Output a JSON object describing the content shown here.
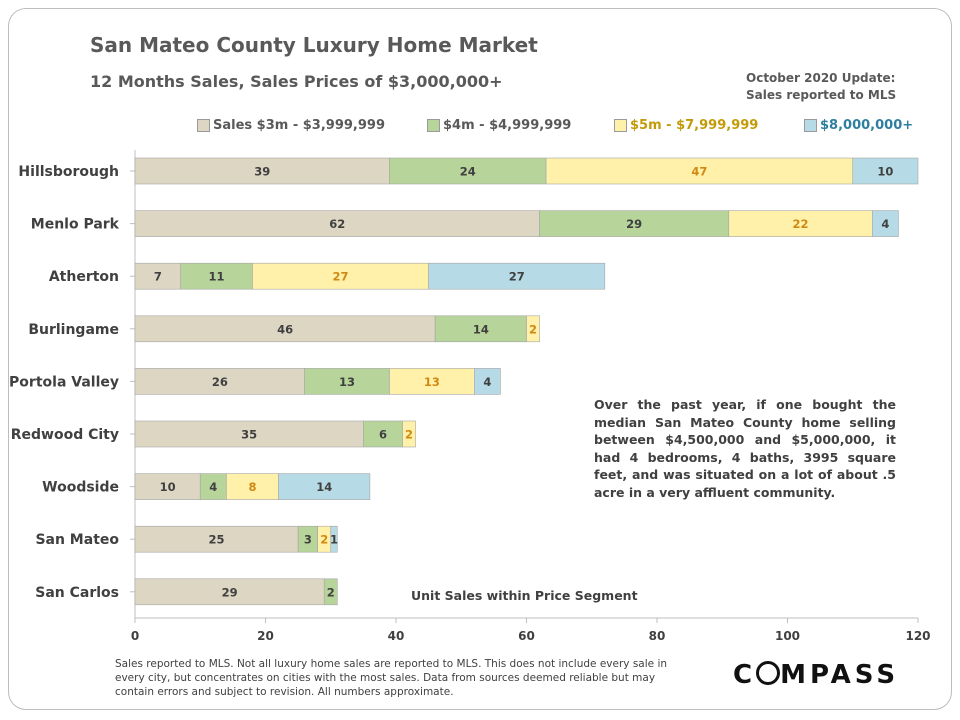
{
  "header": {
    "title": "San Mateo County Luxury Home Market",
    "subtitle": "12 Months  Sales, Sales Prices of $3,000,000+",
    "update_line1": "October 2020 Update:",
    "update_line2": "Sales reported to MLS"
  },
  "legend": [
    {
      "label": "Sales $3m - $3,999,999",
      "fill": "#dcd6c2",
      "text_color": "#595959"
    },
    {
      "label": "$4m - $4,999,999",
      "fill": "#b7d49a",
      "text_color": "#595959"
    },
    {
      "label": "$5m - $7,999,999",
      "fill": "#fff0aa",
      "text_color": "#c39b0a"
    },
    {
      "label": "$8,000,000+",
      "fill": "#b6dbe6",
      "text_color": "#2e7fa0"
    }
  ],
  "annotation": {
    "note": "Over the past year, if one bought the median San Mateo County home selling between $4,500,000 and $5,000,000, it had 4 bedrooms, 4 baths, 3995 square feet, and was situated on a lot of about .5 acre in a very affluent community.",
    "segment_label": "Unit Sales within Price Segment"
  },
  "footer": {
    "disclaimer": "Sales reported to MLS. Not all luxury home sales are reported to MLS. This does not include every sale in every city, but concentrates on cities with the most sales. Data from sources deemed reliable but may contain errors and subject to revision. All numbers approximate.",
    "brand_start": "C",
    "brand_end": "MPASS"
  },
  "chart_data": {
    "type": "bar",
    "orientation": "horizontal",
    "stacked": true,
    "categories": [
      "Hillsborough",
      "Menlo Park",
      "Atherton",
      "Burlingame",
      "Portola Valley",
      "Redwood City",
      "Woodside",
      "San Mateo",
      "San Carlos"
    ],
    "series": [
      {
        "name": "Sales $3m - $3,999,999",
        "values": [
          39,
          62,
          7,
          46,
          26,
          35,
          10,
          25,
          29
        ],
        "color": "#dcd6c2",
        "label_color": "#404040"
      },
      {
        "name": "$4m - $4,999,999",
        "values": [
          24,
          29,
          11,
          14,
          13,
          6,
          4,
          3,
          2
        ],
        "color": "#b7d49a",
        "label_color": "#404040"
      },
      {
        "name": "$5m - $7,999,999",
        "values": [
          47,
          22,
          27,
          2,
          13,
          2,
          8,
          2,
          0
        ],
        "color": "#fff0aa",
        "label_color": "#d08a14"
      },
      {
        "name": "$8,000,000+",
        "values": [
          10,
          4,
          27,
          0,
          4,
          0,
          14,
          1,
          0
        ],
        "color": "#b6dbe6",
        "label_color": "#404040"
      }
    ],
    "xlim": [
      0,
      120
    ],
    "xticks": [
      0,
      20,
      40,
      60,
      80,
      100,
      120
    ],
    "gridlines": false
  }
}
